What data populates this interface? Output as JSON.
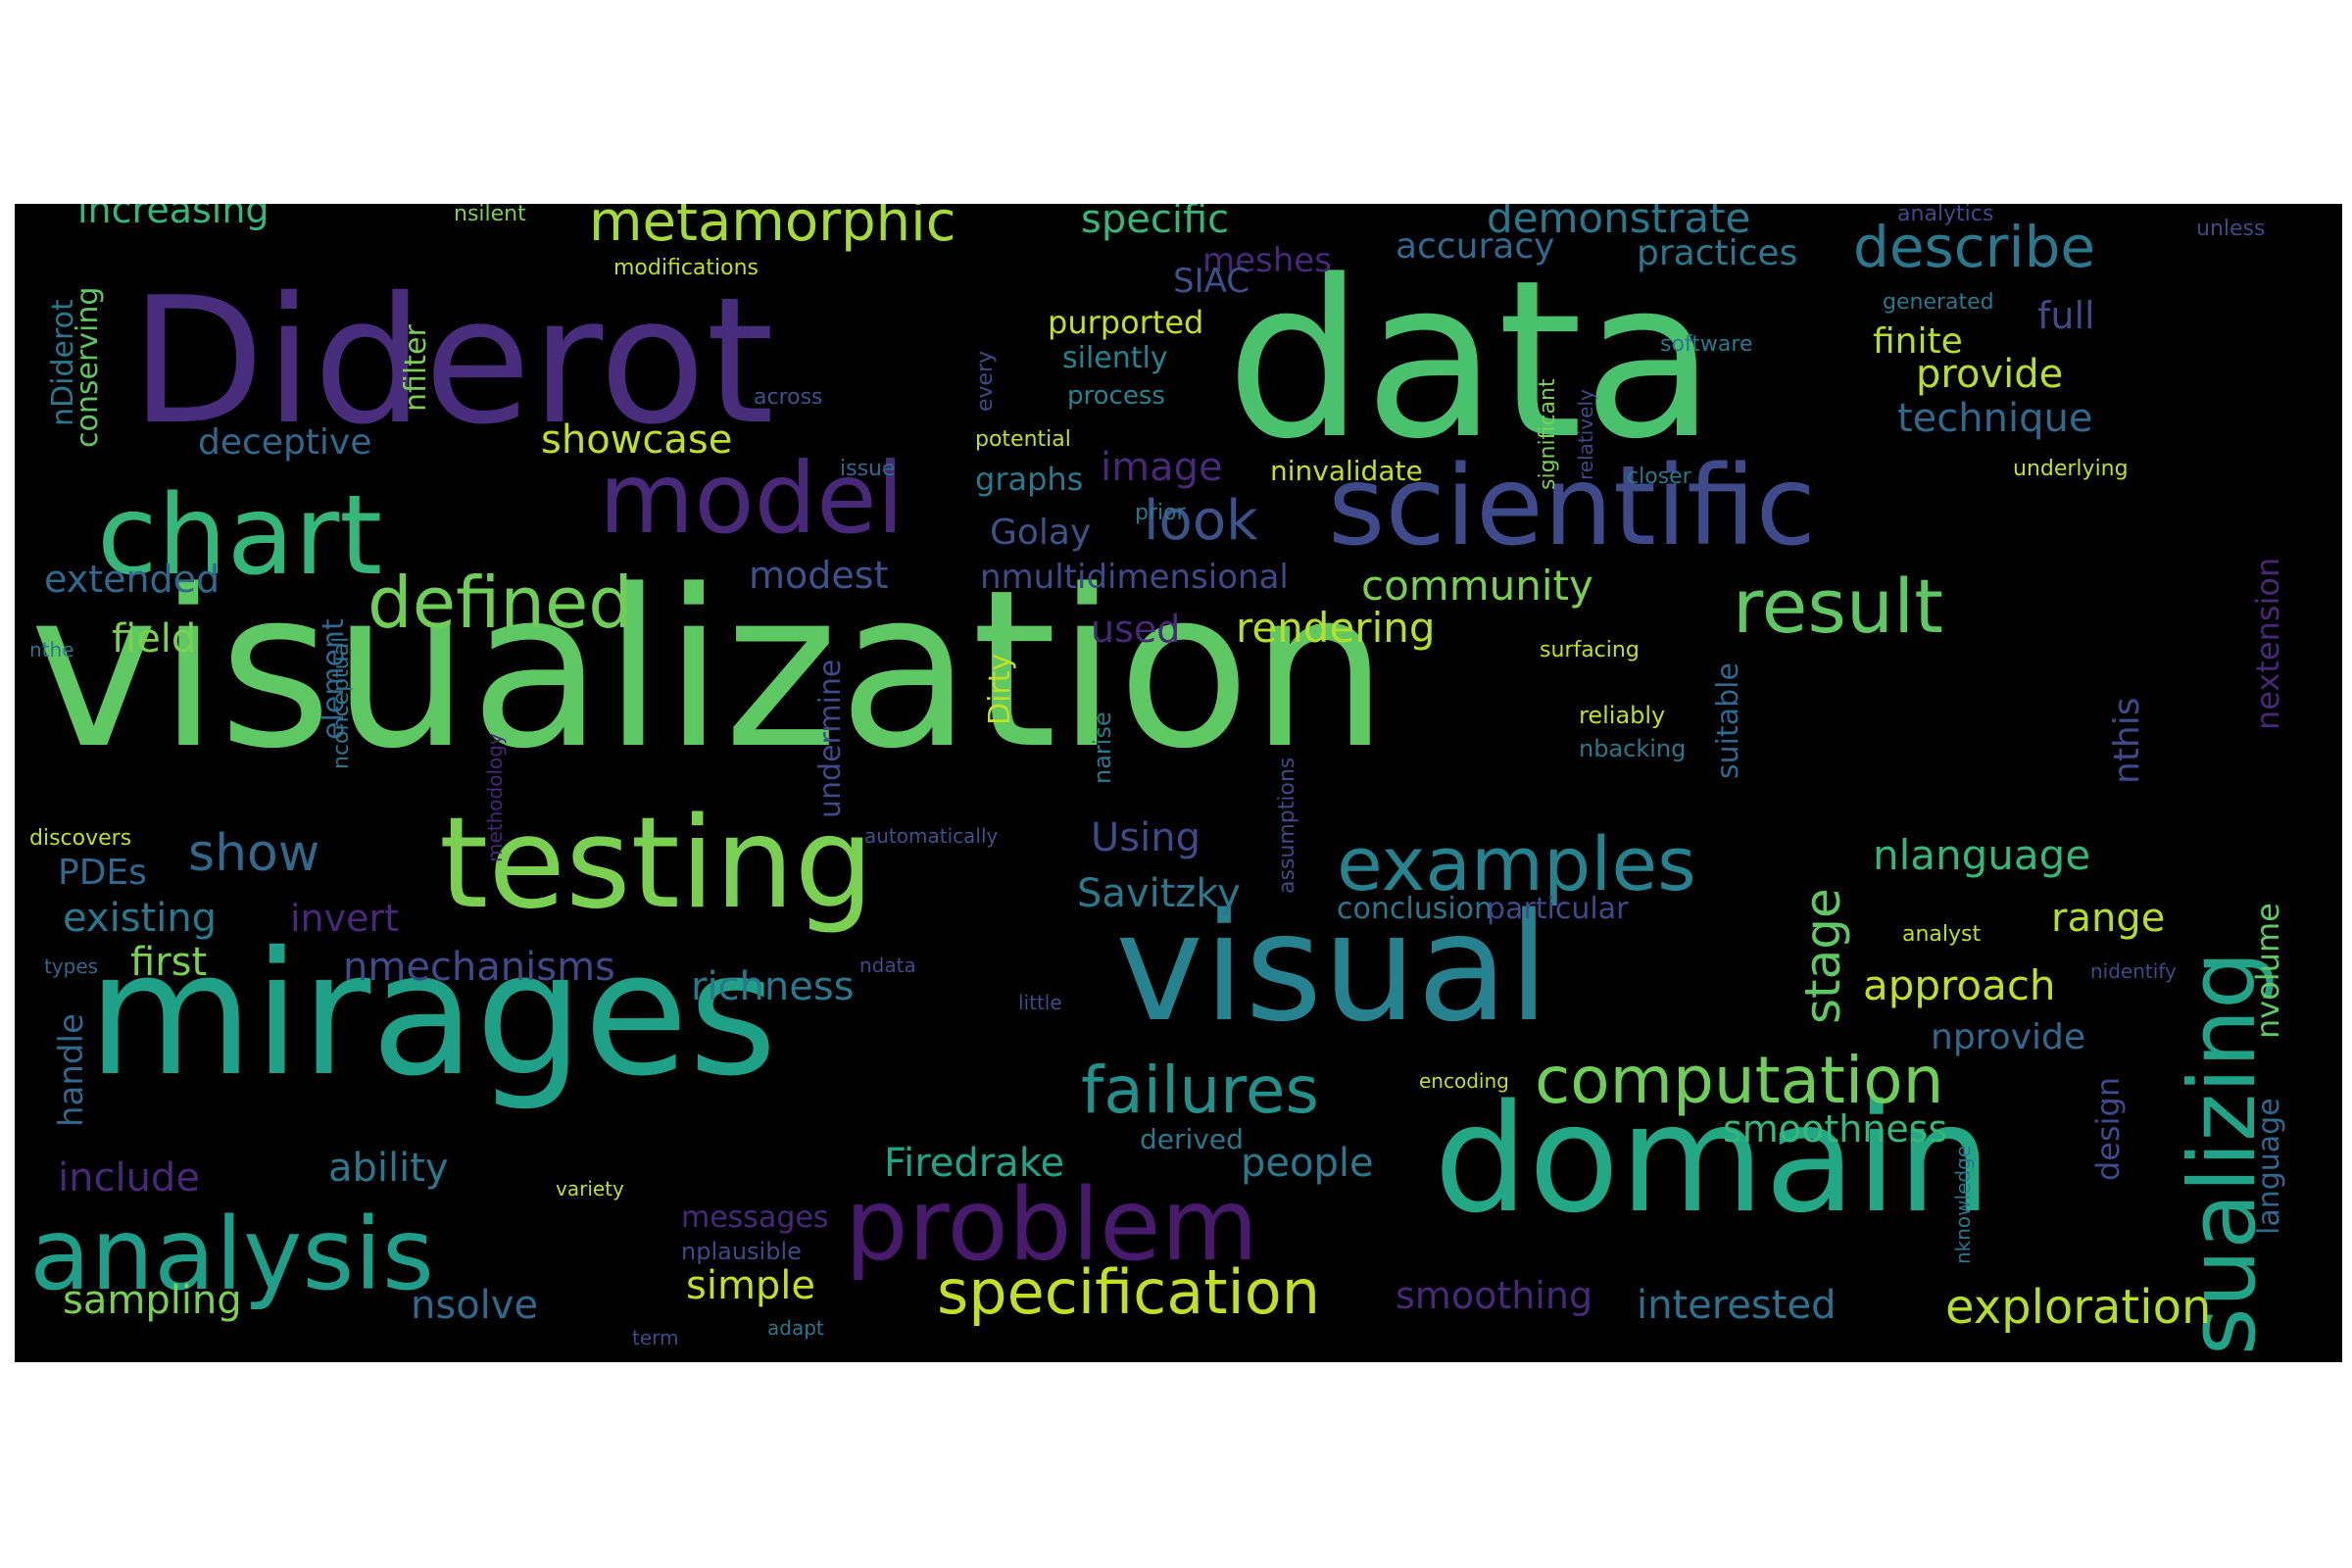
{
  "palette": {
    "v0": "#482878",
    "v1": "#3e4a89",
    "v2": "#31688e",
    "v3": "#26828e",
    "v4": "#1f9e89",
    "v5": "#35b779",
    "v6": "#6ece58",
    "v7": "#b5de2b"
  },
  "words": [
    {
      "text": "visualization",
      "color": "#5ec962"
    },
    {
      "text": "data",
      "color": "#4ac16d"
    },
    {
      "text": "Diderot",
      "color": "#472d7b"
    },
    {
      "text": "mirages",
      "color": "#1fa187"
    },
    {
      "text": "domain",
      "color": "#22a884"
    },
    {
      "text": "visual",
      "color": "#26828e"
    },
    {
      "text": "testing",
      "color": "#7ad151"
    },
    {
      "text": "chart",
      "color": "#35b779"
    },
    {
      "text": "scientific",
      "color": "#3e4a89"
    },
    {
      "text": "model",
      "color": "#482878"
    },
    {
      "text": "problem",
      "color": "#481a6c"
    },
    {
      "text": "analysis",
      "color": "#1f9e89"
    },
    {
      "text": "visualizing",
      "color": "#20a386"
    },
    {
      "text": "examples",
      "color": "#26828e"
    },
    {
      "text": "result",
      "color": "#5ec962"
    },
    {
      "text": "defined",
      "color": "#6ece58"
    },
    {
      "text": "failures",
      "color": "#21918c"
    },
    {
      "text": "computation",
      "color": "#6ece58"
    },
    {
      "text": "specification",
      "color": "#c0df25"
    },
    {
      "text": "describe",
      "color": "#2a788e"
    },
    {
      "text": "metamorphic",
      "color": "#a5db36"
    },
    {
      "text": "look",
      "color": "#3b528b"
    },
    {
      "text": "exploration",
      "color": "#b5de2b"
    },
    {
      "text": "show",
      "color": "#31688e"
    },
    {
      "text": "stage",
      "color": "#5ec962"
    },
    {
      "text": "approach",
      "color": "#c0df25"
    },
    {
      "text": "nlanguage",
      "color": "#35b779"
    },
    {
      "text": "community",
      "color": "#7ad151"
    },
    {
      "text": "rendering",
      "color": "#b5de2b"
    },
    {
      "text": "demonstrate",
      "color": "#2a788e"
    },
    {
      "text": "specific",
      "color": "#35b779"
    },
    {
      "text": "range",
      "color": "#b5de2b"
    },
    {
      "text": "provide",
      "color": "#b5de2b"
    },
    {
      "text": "technique",
      "color": "#31688e"
    },
    {
      "text": "image",
      "color": "#482878"
    },
    {
      "text": "showcase",
      "color": "#c0df25"
    },
    {
      "text": "richness",
      "color": "#2a788e"
    },
    {
      "text": "nmechanisms",
      "color": "#3e4a89"
    },
    {
      "text": "Firedrake",
      "color": "#20a386"
    },
    {
      "text": "smoothness",
      "color": "#35b779"
    },
    {
      "text": "people",
      "color": "#2a788e"
    },
    {
      "text": "interested",
      "color": "#2c728e"
    },
    {
      "text": "smoothing",
      "color": "#482878"
    },
    {
      "text": "sampling",
      "color": "#7ad151"
    },
    {
      "text": "nsolve",
      "color": "#31688e"
    },
    {
      "text": "simple",
      "color": "#c0df25"
    },
    {
      "text": "ability",
      "color": "#2a788e"
    },
    {
      "text": "include",
      "color": "#482878"
    },
    {
      "text": "handle",
      "color": "#31688e"
    },
    {
      "text": "first",
      "color": "#7ad151"
    },
    {
      "text": "existing",
      "color": "#2a788e"
    },
    {
      "text": "PDEs",
      "color": "#31688e"
    },
    {
      "text": "field",
      "color": "#7ad151"
    },
    {
      "text": "extended",
      "color": "#31688e"
    },
    {
      "text": "invert",
      "color": "#482878"
    },
    {
      "text": "Using",
      "color": "#3e4a89"
    },
    {
      "text": "Savitzky",
      "color": "#2a788e"
    },
    {
      "text": "Golay",
      "color": "#3b528b"
    },
    {
      "text": "used",
      "color": "#482878"
    },
    {
      "text": "modest",
      "color": "#3b528b"
    },
    {
      "text": "nmultidimensional",
      "color": "#3e4a89"
    },
    {
      "text": "deceptive",
      "color": "#31688e"
    },
    {
      "text": "graphs",
      "color": "#2a788e"
    },
    {
      "text": "increasing",
      "color": "#35b779"
    },
    {
      "text": "accuracy",
      "color": "#31688e"
    },
    {
      "text": "practices",
      "color": "#2a788e"
    },
    {
      "text": "full",
      "color": "#3e4a89"
    },
    {
      "text": "finite",
      "color": "#b5de2b"
    },
    {
      "text": "meshes",
      "color": "#482878"
    },
    {
      "text": "SIAC",
      "color": "#3b528b"
    },
    {
      "text": "purported",
      "color": "#c0df25"
    },
    {
      "text": "silently",
      "color": "#26828e"
    },
    {
      "text": "process",
      "color": "#26828e"
    },
    {
      "text": "ninvalidate",
      "color": "#c0df25"
    },
    {
      "text": "conclusion",
      "color": "#2a788e"
    },
    {
      "text": "particular",
      "color": "#3e4a89"
    },
    {
      "text": "nvolume",
      "color": "#5ec962"
    },
    {
      "text": "nprovide",
      "color": "#31688e"
    },
    {
      "text": "nextension",
      "color": "#482878"
    },
    {
      "text": "nthis",
      "color": "#3e4a89"
    },
    {
      "text": "suitable",
      "color": "#31688e"
    },
    {
      "text": "language",
      "color": "#31688e"
    },
    {
      "text": "design",
      "color": "#3e4a89"
    },
    {
      "text": "nDiderot",
      "color": "#2a788e"
    },
    {
      "text": "conserving",
      "color": "#5ec962"
    },
    {
      "text": "nfilter",
      "color": "#7ad151"
    },
    {
      "text": "element",
      "color": "#31688e"
    },
    {
      "text": "undermine",
      "color": "#3e4a89"
    },
    {
      "text": "Dirty",
      "color": "#c0df25"
    },
    {
      "text": "narise",
      "color": "#2a788e"
    },
    {
      "text": "derived",
      "color": "#2a788e"
    },
    {
      "text": "messages",
      "color": "#482878"
    },
    {
      "text": "nplausible",
      "color": "#3e4a89"
    },
    {
      "text": "nbacking",
      "color": "#2a788e"
    },
    {
      "text": "reliably",
      "color": "#c0df25"
    },
    {
      "text": "nsilent",
      "color": "#7ad151"
    },
    {
      "text": "modifications",
      "color": "#c0df25"
    },
    {
      "text": "across",
      "color": "#3b528b"
    },
    {
      "text": "issue",
      "color": "#31688e"
    },
    {
      "text": "potential",
      "color": "#c0df25"
    },
    {
      "text": "every",
      "color": "#3e4a89"
    },
    {
      "text": "significant",
      "color": "#7ad151"
    },
    {
      "text": "relatively",
      "color": "#3e4a89"
    },
    {
      "text": "software",
      "color": "#2a788e"
    },
    {
      "text": "generated",
      "color": "#2a788e"
    },
    {
      "text": "closer",
      "color": "#2a788e"
    },
    {
      "text": "underlying",
      "color": "#c0df25"
    },
    {
      "text": "analytics",
      "color": "#3e4a89"
    },
    {
      "text": "unless",
      "color": "#3e4a89"
    },
    {
      "text": "nthe",
      "color": "#2a788e"
    },
    {
      "text": "nconceptual",
      "color": "#2a788e"
    },
    {
      "text": "methodology",
      "color": "#482878"
    },
    {
      "text": "discovers",
      "color": "#c0df25"
    },
    {
      "text": "types",
      "color": "#31688e"
    },
    {
      "text": "automatically",
      "color": "#3b528b"
    },
    {
      "text": "prior",
      "color": "#2a788e"
    },
    {
      "text": "assumptions",
      "color": "#3e4a89"
    },
    {
      "text": "surfacing",
      "color": "#c0df25"
    },
    {
      "text": "ndata",
      "color": "#3e4a89"
    },
    {
      "text": "little",
      "color": "#3e4a89"
    },
    {
      "text": "analyst",
      "color": "#c0df25"
    },
    {
      "text": "nidentify",
      "color": "#3e4a89"
    },
    {
      "text": "encoding",
      "color": "#c0df25"
    },
    {
      "text": "variety",
      "color": "#c0df25"
    },
    {
      "text": "adapt",
      "color": "#2a788e"
    },
    {
      "text": "term",
      "color": "#3e4a89"
    },
    {
      "text": "nknowledge",
      "color": "#2a788e"
    }
  ]
}
